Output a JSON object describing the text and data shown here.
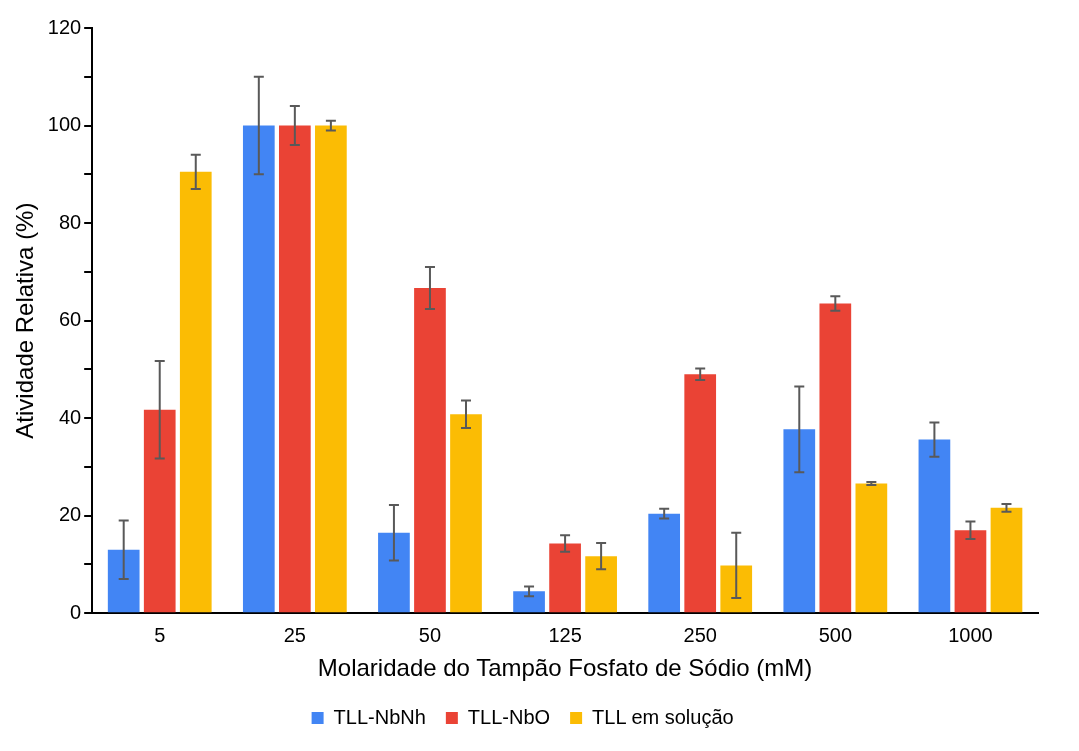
{
  "chart_data": {
    "type": "bar",
    "xlabel": "Molaridade do Tampão Fosfato de Sódio (mM)",
    "ylabel": "Atividade Relativa (%)",
    "categories": [
      "5",
      "25",
      "50",
      "125",
      "250",
      "500",
      "1000"
    ],
    "series": [
      {
        "name": "TLL-NbNh",
        "color": "#4285f4",
        "values": [
          13,
          100,
          16.5,
          4.5,
          20.4,
          37.7,
          35.6
        ],
        "errors": [
          6,
          10,
          5.7,
          1,
          1,
          8.8,
          3.5
        ]
      },
      {
        "name": "TLL-NbO",
        "color": "#ea4335",
        "values": [
          41.7,
          100,
          66.7,
          14.3,
          49,
          63.5,
          17
        ],
        "errors": [
          10,
          4,
          4.3,
          1.7,
          1.2,
          1.5,
          1.8
        ]
      },
      {
        "name": "TLL em solução",
        "color": "#fbbc04",
        "values": [
          90.5,
          100,
          40.8,
          11.7,
          9.8,
          26.6,
          21.6
        ],
        "errors": [
          3.5,
          1,
          2.8,
          2.7,
          6.7,
          0.3,
          0.8
        ]
      }
    ],
    "ylim": [
      0,
      120
    ],
    "yticks": [
      0,
      {
        "value": 10,
        "label": null
      },
      20,
      {
        "value": 30,
        "label": null
      },
      40,
      {
        "value": 50,
        "label": null
      },
      60,
      {
        "value": 70,
        "label": null
      },
      80,
      {
        "value": 90,
        "label": null
      },
      100,
      {
        "value": 110,
        "label": null
      },
      120
    ],
    "grid": false,
    "legend": "bottom"
  }
}
